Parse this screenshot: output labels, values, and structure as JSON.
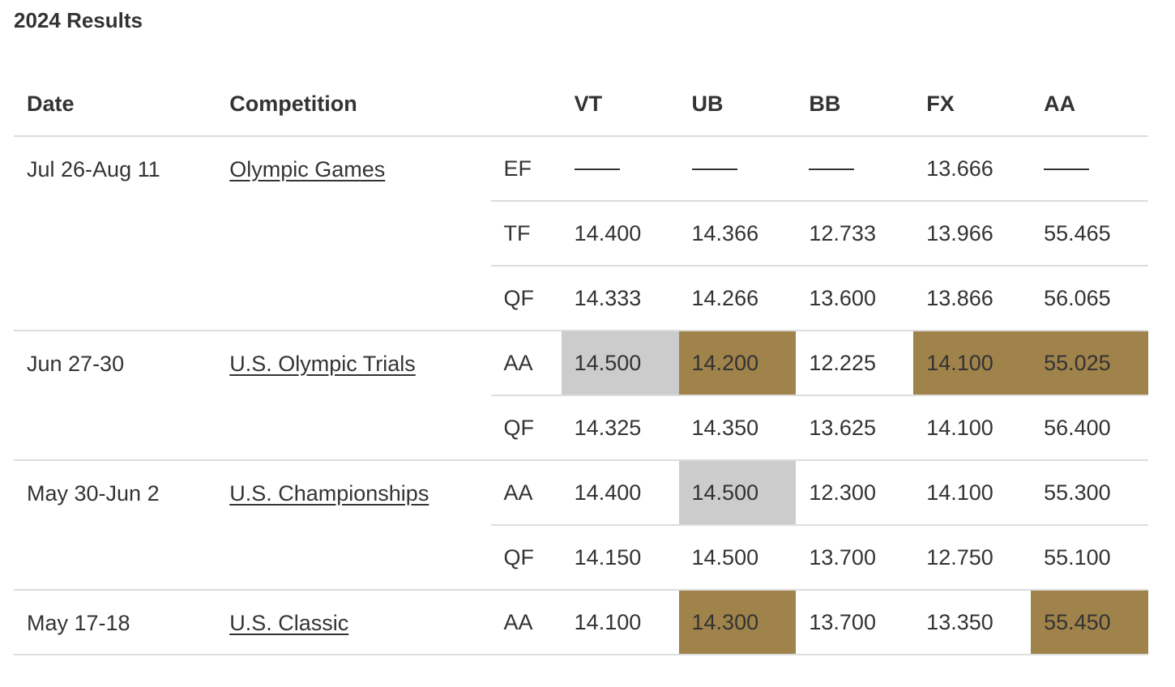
{
  "title": "2024 Results",
  "headers": {
    "date": "Date",
    "competition": "Competition",
    "round": "",
    "events": [
      "VT",
      "UB",
      "BB",
      "FX",
      "AA"
    ]
  },
  "colors": {
    "silver": "#cccccc",
    "gold": "#a0834a",
    "divider": "#dddddd",
    "text": "#333333"
  },
  "competitions": [
    {
      "date": "Jul 26-Aug 11",
      "name": "Olympic Games",
      "rounds": [
        {
          "round": "EF",
          "scores": [
            {
              "v": "—",
              "medal": null
            },
            {
              "v": "—",
              "medal": null
            },
            {
              "v": "—",
              "medal": null
            },
            {
              "v": "13.666",
              "medal": null
            },
            {
              "v": "—",
              "medal": null
            }
          ]
        },
        {
          "round": "TF",
          "scores": [
            {
              "v": "14.400",
              "medal": null
            },
            {
              "v": "14.366",
              "medal": null
            },
            {
              "v": "12.733",
              "medal": null
            },
            {
              "v": "13.966",
              "medal": null
            },
            {
              "v": "55.465",
              "medal": null
            }
          ]
        },
        {
          "round": "QF",
          "scores": [
            {
              "v": "14.333",
              "medal": null
            },
            {
              "v": "14.266",
              "medal": null
            },
            {
              "v": "13.600",
              "medal": null
            },
            {
              "v": "13.866",
              "medal": null
            },
            {
              "v": "56.065",
              "medal": null
            }
          ]
        }
      ]
    },
    {
      "date": "Jun 27-30",
      "name": "U.S. Olympic Trials",
      "rounds": [
        {
          "round": "AA",
          "scores": [
            {
              "v": "14.500",
              "medal": "silver"
            },
            {
              "v": "14.200",
              "medal": "gold"
            },
            {
              "v": "12.225",
              "medal": null
            },
            {
              "v": "14.100",
              "medal": "gold"
            },
            {
              "v": "55.025",
              "medal": "gold"
            }
          ]
        },
        {
          "round": "QF",
          "scores": [
            {
              "v": "14.325",
              "medal": null
            },
            {
              "v": "14.350",
              "medal": null
            },
            {
              "v": "13.625",
              "medal": null
            },
            {
              "v": "14.100",
              "medal": null
            },
            {
              "v": "56.400",
              "medal": null
            }
          ]
        }
      ]
    },
    {
      "date": "May 30-Jun 2",
      "name": "U.S. Championships",
      "rounds": [
        {
          "round": "AA",
          "scores": [
            {
              "v": "14.400",
              "medal": null
            },
            {
              "v": "14.500",
              "medal": "silver"
            },
            {
              "v": "12.300",
              "medal": null
            },
            {
              "v": "14.100",
              "medal": null
            },
            {
              "v": "55.300",
              "medal": null
            }
          ]
        },
        {
          "round": "QF",
          "scores": [
            {
              "v": "14.150",
              "medal": null
            },
            {
              "v": "14.500",
              "medal": null
            },
            {
              "v": "13.700",
              "medal": null
            },
            {
              "v": "12.750",
              "medal": null
            },
            {
              "v": "55.100",
              "medal": null
            }
          ]
        }
      ]
    },
    {
      "date": "May 17-18",
      "name": "U.S. Classic",
      "rounds": [
        {
          "round": "AA",
          "scores": [
            {
              "v": "14.100",
              "medal": null
            },
            {
              "v": "14.300",
              "medal": "gold"
            },
            {
              "v": "13.700",
              "medal": null
            },
            {
              "v": "13.350",
              "medal": null
            },
            {
              "v": "55.450",
              "medal": "gold"
            }
          ]
        }
      ]
    }
  ]
}
